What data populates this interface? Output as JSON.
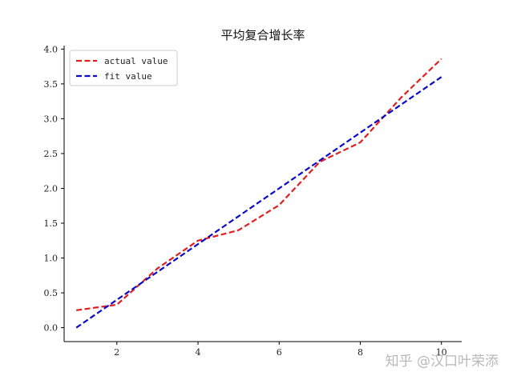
{
  "chart_data": {
    "type": "line",
    "title": "平均复合增长率",
    "xlabel": "",
    "ylabel": "",
    "x": [
      1,
      2,
      3,
      4,
      5,
      6,
      7,
      8,
      9,
      10
    ],
    "series": [
      {
        "name": "actual value",
        "color": "#e0201e",
        "values": [
          0.25,
          0.33,
          0.85,
          1.25,
          1.4,
          1.76,
          2.38,
          2.66,
          3.3,
          3.86
        ]
      },
      {
        "name": "fit value",
        "color": "#0a0ac8",
        "values": [
          0.0,
          0.4,
          0.8,
          1.2,
          1.6,
          2.0,
          2.4,
          2.8,
          3.2,
          3.6
        ]
      }
    ],
    "xlim": [
      0.7,
      10.5
    ],
    "ylim": [
      -0.2,
      4.05
    ],
    "xticks": [
      2,
      4,
      6,
      8,
      10
    ],
    "yticks": [
      0.0,
      0.5,
      1.0,
      1.5,
      2.0,
      2.5,
      3.0,
      3.5,
      4.0
    ],
    "legend_placement": "top-left",
    "grid": false
  },
  "watermark": "知乎 @汉口叶荣添"
}
